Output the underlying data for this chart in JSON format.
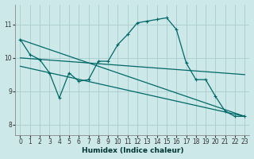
{
  "xlabel": "Humidex (Indice chaleur)",
  "bg_color": "#cce8e8",
  "line_color": "#006868",
  "grid_color": "#aacccc",
  "axis_color": "#888888",
  "xlim": [
    -0.5,
    23.5
  ],
  "ylim": [
    7.7,
    11.6
  ],
  "xticks": [
    0,
    1,
    2,
    3,
    4,
    5,
    6,
    7,
    8,
    9,
    10,
    11,
    12,
    13,
    14,
    15,
    16,
    17,
    18,
    19,
    20,
    21,
    22,
    23
  ],
  "yticks": [
    8,
    9,
    10,
    11
  ],
  "line1_x": [
    0,
    1,
    2,
    3,
    4,
    5,
    6,
    7,
    8,
    9,
    10,
    11,
    12,
    13,
    14,
    15,
    16,
    17,
    18,
    19,
    20,
    21,
    22,
    23
  ],
  "line1_y": [
    10.55,
    10.1,
    9.95,
    9.55,
    8.8,
    9.55,
    9.3,
    9.35,
    9.9,
    9.9,
    10.4,
    10.7,
    11.05,
    11.1,
    11.15,
    11.2,
    10.85,
    9.85,
    9.35,
    9.35,
    8.85,
    8.4,
    8.25,
    8.25
  ],
  "line2_x": [
    0,
    23
  ],
  "line2_y": [
    10.55,
    8.25
  ],
  "line3_x": [
    0,
    23
  ],
  "line3_y": [
    10.0,
    9.5
  ],
  "line4_x": [
    0,
    23
  ],
  "line4_y": [
    9.75,
    8.25
  ]
}
